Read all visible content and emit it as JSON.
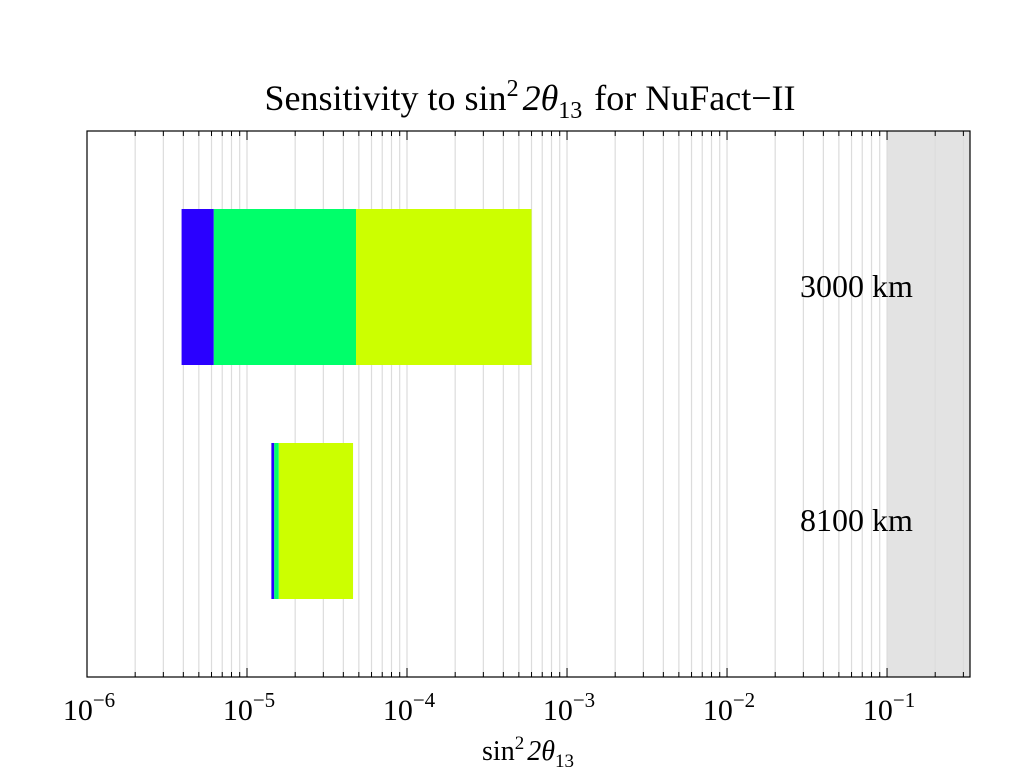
{
  "chart_data": {
    "type": "bar",
    "orientation": "horizontal",
    "title": {
      "pre": "Sensitivity to sin",
      "sup": "2",
      "mid": "2θ",
      "sub": "13",
      "post": "for NuFact−II"
    },
    "xlabel": {
      "pre": "sin",
      "sup": "2",
      "mid": "2θ",
      "sub": "13"
    },
    "x_scale": "log",
    "xlim": [
      1e-06,
      0.33
    ],
    "x_ticks": [
      {
        "base": "10",
        "exp": "−6",
        "value": 1e-06
      },
      {
        "base": "10",
        "exp": "−5",
        "value": 1e-05
      },
      {
        "base": "10",
        "exp": "−4",
        "value": 0.0001
      },
      {
        "base": "10",
        "exp": "−3",
        "value": 0.001
      },
      {
        "base": "10",
        "exp": "−2",
        "value": 0.01
      },
      {
        "base": "10",
        "exp": "−1",
        "value": 0.1
      }
    ],
    "grid": true,
    "excluded_region": {
      "from": 0.1,
      "to": 0.33,
      "color": "#e3e3e3"
    },
    "categories": [
      "3000 km",
      "8100 km"
    ],
    "series_colors": [
      "#2a00ff",
      "#00ff6a",
      "#ccff00"
    ],
    "bars": [
      {
        "label": "3000 km",
        "segments": [
          {
            "from": 3.9e-06,
            "to": 6.2e-06,
            "color": "#2a00ff"
          },
          {
            "from": 6.2e-06,
            "to": 4.8e-05,
            "color": "#00ff6a"
          },
          {
            "from": 4.8e-05,
            "to": 0.0006,
            "color": "#ccff00"
          }
        ]
      },
      {
        "label": "8100 km",
        "segments": [
          {
            "from": 1.42e-05,
            "to": 1.48e-05,
            "color": "#2a00ff"
          },
          {
            "from": 1.48e-05,
            "to": 1.58e-05,
            "color": "#00ff6a"
          },
          {
            "from": 1.58e-05,
            "to": 4.6e-05,
            "color": "#ccff00"
          }
        ]
      }
    ]
  }
}
